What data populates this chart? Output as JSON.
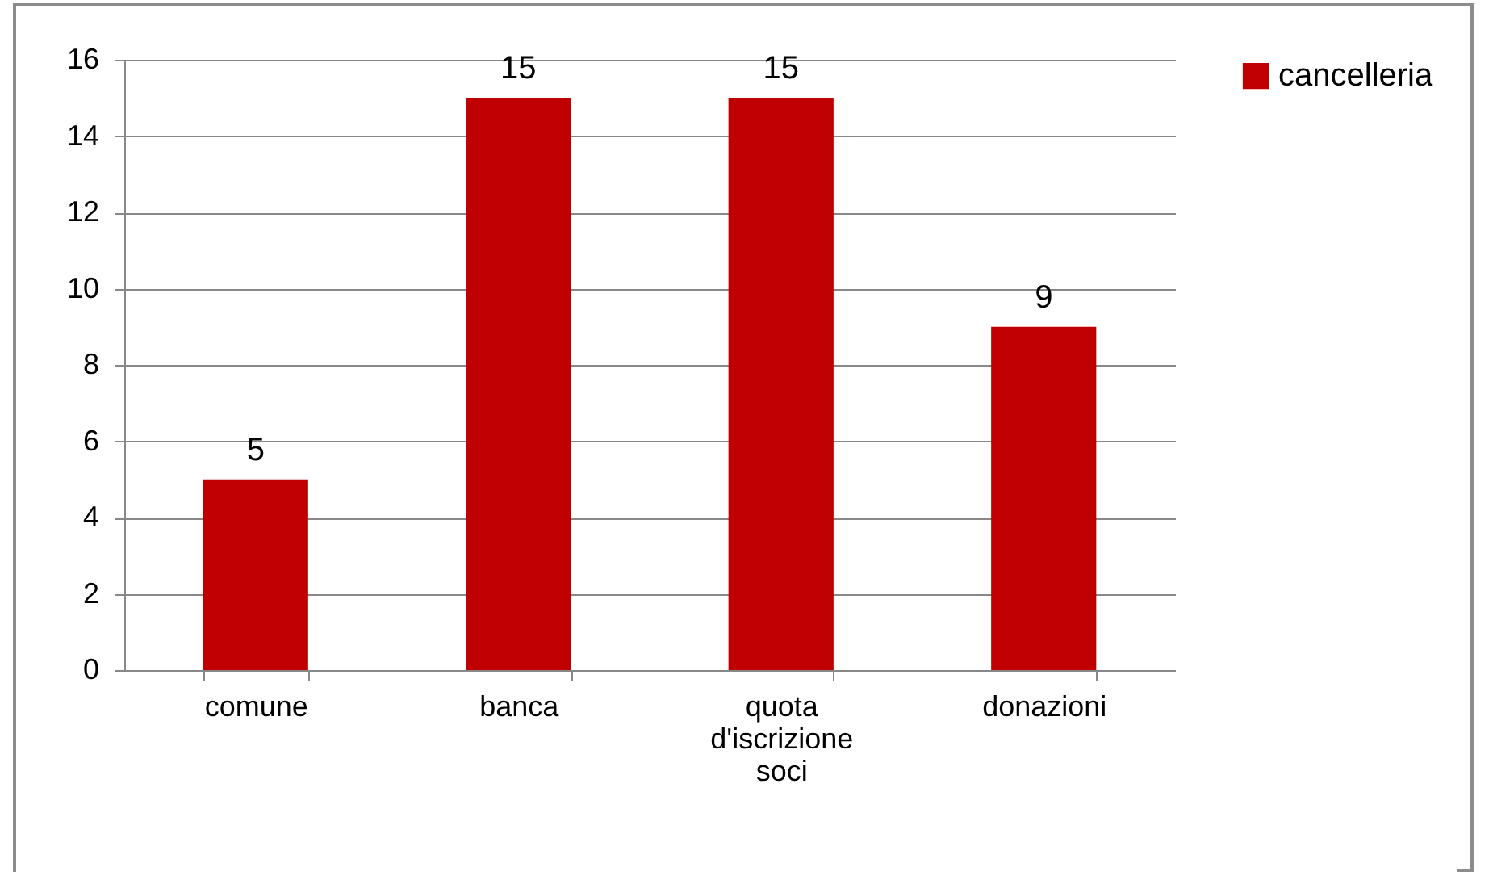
{
  "chart_data": {
    "type": "bar",
    "categories": [
      "comune",
      "banca",
      "quota d'iscrizione soci",
      "donazioni"
    ],
    "series": [
      {
        "name": "cancelleria",
        "color": "#c00000",
        "values": [
          5,
          15,
          15,
          9
        ]
      }
    ],
    "ylim": [
      0,
      16
    ],
    "yticks": [
      0,
      2,
      4,
      6,
      8,
      10,
      12,
      14,
      16
    ],
    "grid": "y",
    "legend": "right",
    "data_labels": true
  }
}
